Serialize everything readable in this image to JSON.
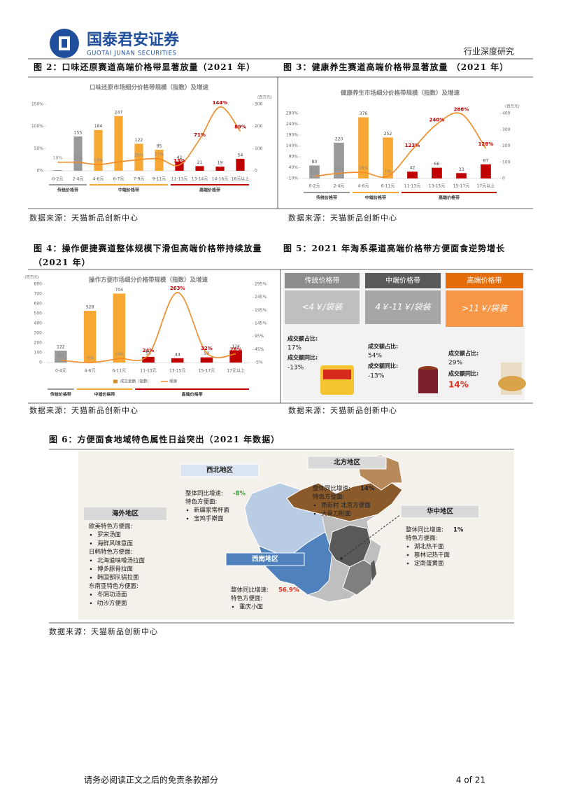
{
  "header": {
    "brand": "国泰君安证券",
    "brand_en": "GUOTAI JUNAN SECURITIES",
    "report_type": "行业深度研究"
  },
  "figures": [
    {
      "caption": "图 2：口味还原赛道高端价格带显著放量（2021 年）",
      "source": "数据来源：天猫新品创新中心",
      "chart": {
        "type": "bar_line",
        "title": "口味还原市场细分价格带规模（指数）及增速",
        "y2_unit": "(百万元)",
        "groups": [
          {
            "label": "传统价格带",
            "color": "#9a9a9a",
            "categories": [
              "0-2元",
              "2-4元"
            ]
          },
          {
            "label": "中端价格带",
            "color": "#f7a733",
            "categories": [
              "4-6元",
              "6-7元",
              "7-9元",
              "9-11元"
            ]
          },
          {
            "label": "高端价格带",
            "color": "#c00000",
            "categories": [
              "11-13元",
              "13-14元",
              "14-16元",
              "16元以上"
            ]
          }
        ],
        "series": [
          {
            "type": "bar",
            "axis": "y2",
            "values": [
              3,
              155,
              184,
              247,
              122,
              95,
              42,
              21,
              19,
              54
            ],
            "value_labels": [
              null,
              "155",
              "184",
              "247",
              "122",
              "95",
              "42",
              "21",
              "19",
              "54"
            ]
          },
          {
            "type": "line",
            "axis": "y",
            "color": "#f08a24",
            "values": [
              19,
              19,
              14,
              20,
              25,
              27,
              13,
              71,
              144,
              89
            ],
            "value_labels": [
              "19%",
              "19%",
              "14%",
              null,
              "25%",
              "27%",
              "13%",
              "71%",
              "144%",
              "89%"
            ]
          }
        ],
        "ylim": [
          0,
          150
        ],
        "yticks": [
          {
            "value": 0,
            "label": "0%"
          },
          {
            "value": 50,
            "label": "50%"
          },
          {
            "value": 100,
            "label": "100%"
          },
          {
            "value": 150,
            "label": "150%"
          }
        ],
        "y2lim": [
          0,
          300
        ],
        "y2ticks": [
          0,
          100,
          200,
          300
        ]
      }
    },
    {
      "caption": "图 3：健康养生赛道高端价格带显著放量 （2021 年）",
      "source": "数据来源：天猫新品创新中心",
      "chart": {
        "type": "bar_line",
        "title": "健康养生市场细分价格带规模（指数）及增速",
        "y2_unit": "(百万元)",
        "groups": [
          {
            "label": "传统价格带",
            "color": "#9a9a9a",
            "categories": [
              "0-2元",
              "2-4元"
            ]
          },
          {
            "label": "中端价格带",
            "color": "#f7a733",
            "categories": [
              "4-6元",
              "6-11元"
            ]
          },
          {
            "label": "高端价格带",
            "color": "#c00000",
            "categories": [
              "11-13元",
              "13-15元",
              "15-17元",
              "17元以上"
            ]
          }
        ],
        "series": [
          {
            "type": "bar",
            "axis": "y2",
            "values": [
              80,
              220,
              376,
              252,
              42,
              66,
              33,
              87
            ]
          },
          {
            "type": "line",
            "axis": "y",
            "color": "#f08a24",
            "values": [
              0,
              14,
              18,
              1,
              123,
              240,
              288,
              128
            ],
            "value_labels": [
              "0%",
              "14%",
              "18%",
              "1%",
              "123%",
              "240%",
              "288%",
              "128%"
            ]
          }
        ],
        "ylim": [
          -10,
          290
        ],
        "yticks": [
          {
            "value": -10,
            "label": "-10%"
          },
          {
            "value": 40,
            "label": "40%"
          },
          {
            "value": 90,
            "label": "90%"
          },
          {
            "value": 140,
            "label": "140%"
          },
          {
            "value": 190,
            "label": "190%"
          },
          {
            "value": 240,
            "label": "240%"
          },
          {
            "value": 290,
            "label": "290%"
          }
        ],
        "y2lim": [
          0,
          400
        ],
        "y2ticks": [
          0,
          100,
          200,
          300,
          400
        ]
      }
    },
    {
      "caption": "图 4：操作便捷赛道整体规模下滑但高端价格带持续放量（2021 年）",
      "source": "数据来源：天猫新品创新中心",
      "chart": {
        "type": "bar_line",
        "title": "操作方便市场细分价格带规模（指数）及增速",
        "y_unit": "(百万元)",
        "groups": [
          {
            "label": "传统价格带",
            "color": "#9a9a9a",
            "categories": [
              "0-4元"
            ]
          },
          {
            "label": "中端价格带",
            "color": "#f7a733",
            "categories": [
              "4-6元",
              "6-11元"
            ]
          },
          {
            "label": "高端价格带",
            "color": "#c00000",
            "categories": [
              "11-13元",
              "13-15元",
              "15-17元",
              "17元以上"
            ]
          }
        ],
        "series": [
          {
            "type": "bar",
            "axis": "y",
            "name": "成交金额（指数）",
            "color": "#d98b2b",
            "values": [
              122,
              528,
              704,
              58,
              44,
              53,
              124
            ]
          },
          {
            "type": "line",
            "axis": "y2",
            "name": "增速",
            "color": "#f08a24",
            "values": [
              4,
              -5,
              10,
              24,
              263,
              32,
              28
            ],
            "value_labels": [
              "4%",
              "-5%",
              "10%",
              "24%",
              "263%",
              "32%",
              "28%"
            ]
          }
        ],
        "ylim": [
          0,
          800
        ],
        "yticks": [
          0,
          100,
          200,
          300,
          400,
          500,
          600,
          700,
          800
        ],
        "y2lim": [
          -5,
          295
        ],
        "y2ticks": [
          {
            "value": -5,
            "label": "-5%"
          },
          {
            "value": 45,
            "label": "45%"
          },
          {
            "value": 95,
            "label": "95%"
          },
          {
            "value": 145,
            "label": "145%"
          },
          {
            "value": 195,
            "label": "195%"
          },
          {
            "value": 245,
            "label": "245%"
          },
          {
            "value": 295,
            "label": "295%"
          }
        ]
      }
    },
    {
      "caption": "图 5：2021 年淘系渠道高端价格带方便面食逆势增长",
      "source": "数据来源：天猫新品创新中心",
      "panels": [
        {
          "band": "传统价格带",
          "price": "<4￥/袋装",
          "share_label": "成交额占比:",
          "share": "17%",
          "yoy_label": "成交额同比:",
          "yoy": "-13%"
        },
        {
          "band": "中端价格带",
          "price": "4￥-11￥/袋装",
          "share_label": "成交额占比:",
          "share": "54%",
          "yoy_label": "成交额同比:",
          "yoy": "-13%"
        },
        {
          "band": "高端价格带",
          "price": ">11￥/袋装",
          "share_label": "成交额占比:",
          "share": "29%",
          "yoy_label": "成交额同比:",
          "yoy": "14%"
        }
      ]
    },
    {
      "caption": "图 6：方便面食地域特色属性日益突出（2021 年数据）",
      "source": "数据来源：天猫新品创新中心",
      "regions": [
        {
          "name": "西北地区",
          "growth_label": "整体同比增速:",
          "growth": "-8%",
          "feature_label": "特色方便面:",
          "items": [
            "新疆家常杯面",
            "宝鸡手擀面"
          ]
        },
        {
          "name": "北方地区",
          "growth_label": "整体同比增速:",
          "growth": "14%",
          "feature_label": "特色方便面:",
          "items": [
            "南街村 北京方便面",
            "大骨刀削面"
          ]
        },
        {
          "name": "华中地区",
          "growth_label": "整体同比增速:",
          "growth": "1%",
          "feature_label": "特色方便面:",
          "items": [
            "湖北热干面",
            "蔡林记热干面",
            "定南蛋黄面"
          ]
        },
        {
          "name": "西南地区",
          "growth_label": "整体同比增速:",
          "growth": "56.9%",
          "feature_label": "特色方便面:",
          "items": [
            "重庆小面"
          ]
        }
      ],
      "overseas": {
        "name": "海外地区",
        "groups": [
          {
            "label": "欧美特色方便面:",
            "items": [
              "罗宋汤面",
              "海鲜风味意面"
            ]
          },
          {
            "label": "日韩特色方便面:",
            "items": [
              "北海道味噌汤拉面",
              "博多豚骨拉面",
              "韩国部队锅拉面"
            ]
          },
          {
            "label": "东南亚特色方便面:",
            "items": [
              "冬阴功汤面",
              "叻沙方便面"
            ]
          }
        ]
      }
    }
  ],
  "footer": {
    "disclaimer": "请务必阅读正文之后的免责条款部分",
    "page": "4 of 21"
  }
}
